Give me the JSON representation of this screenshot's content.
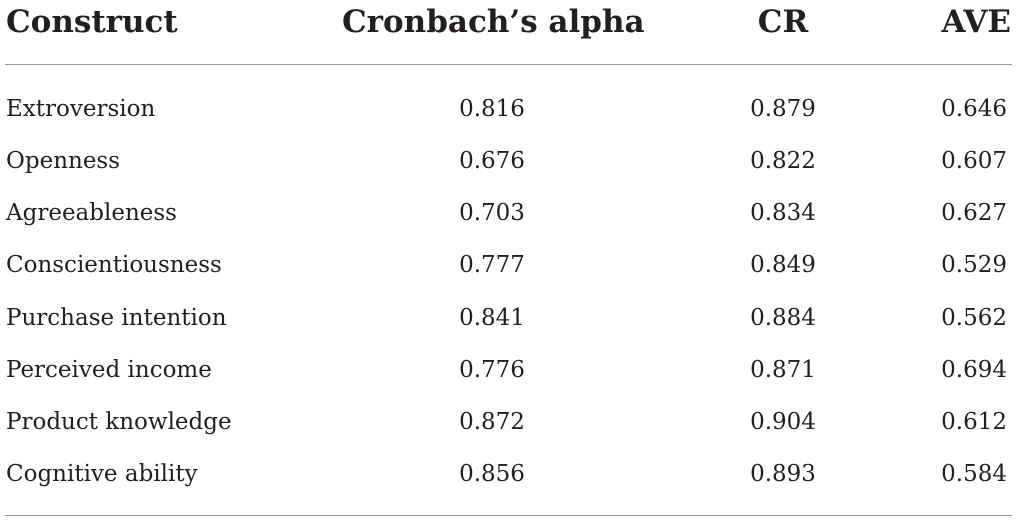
{
  "table": {
    "headers": {
      "construct": "Construct",
      "alpha": "Cronbach’s alpha",
      "cr": "CR",
      "ave": "AVE"
    },
    "rows": [
      {
        "construct": "Extroversion",
        "alpha": "0.816",
        "cr": "0.879",
        "ave": "0.646"
      },
      {
        "construct": "Openness",
        "alpha": "0.676",
        "cr": "0.822",
        "ave": "0.607"
      },
      {
        "construct": "Agreeableness",
        "alpha": "0.703",
        "cr": "0.834",
        "ave": "0.627"
      },
      {
        "construct": "Conscientiousness",
        "alpha": "0.777",
        "cr": "0.849",
        "ave": "0.529"
      },
      {
        "construct": "Purchase intention",
        "alpha": "0.841",
        "cr": "0.884",
        "ave": "0.562"
      },
      {
        "construct": "Perceived income",
        "alpha": "0.776",
        "cr": "0.871",
        "ave": "0.694"
      },
      {
        "construct": "Product knowledge",
        "alpha": "0.872",
        "cr": "0.904",
        "ave": "0.612"
      },
      {
        "construct": "Cognitive ability",
        "alpha": "0.856",
        "cr": "0.893",
        "ave": "0.584"
      }
    ]
  }
}
